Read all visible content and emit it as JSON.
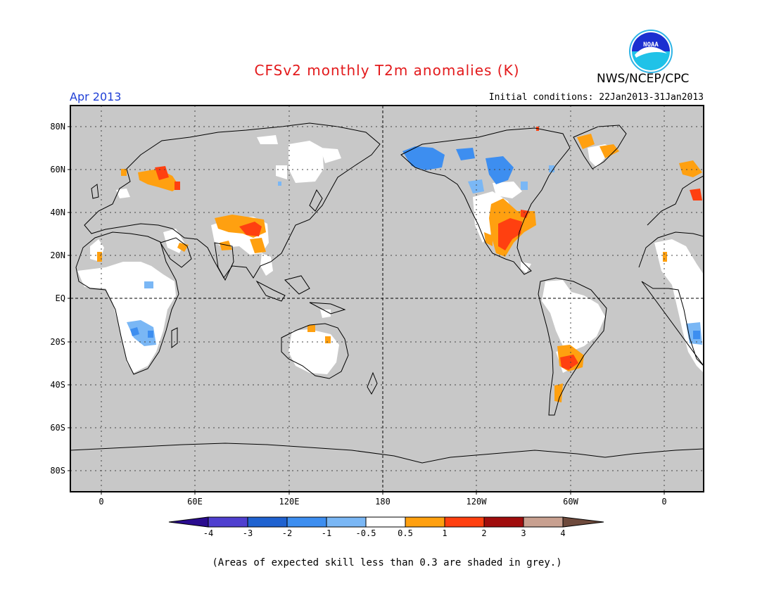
{
  "header": {
    "title": "CFSv2 monthly T2m anomalies (K)",
    "agency": "NWS/NCEP/CPC",
    "valid_month": "Apr 2013",
    "initial_conditions": "Initial conditions: 22Jan2013-31Jan2013",
    "logo_text": "NOAA"
  },
  "map": {
    "lat_labels": [
      "80N",
      "60N",
      "40N",
      "20N",
      "EQ",
      "20S",
      "40S",
      "60S",
      "80S"
    ],
    "lon_labels": [
      "0",
      "60E",
      "120E",
      "180",
      "120W",
      "60W",
      "0"
    ]
  },
  "colorbar": {
    "tick_labels": [
      "-4",
      "-3",
      "-2",
      "-1",
      "-0.5",
      "0.5",
      "1",
      "2",
      "3",
      "4"
    ],
    "colors": [
      "#2a0c8f",
      "#4f3fcf",
      "#1f62d0",
      "#3d8ef0",
      "#7ab7f5",
      "#ffffff",
      "#ffa010",
      "#ff4010",
      "#a00d0d",
      "#c8a090",
      "#6e4a3c"
    ]
  },
  "footnote": "(Areas of expected skill less than 0.3 are shaded in grey.)"
}
